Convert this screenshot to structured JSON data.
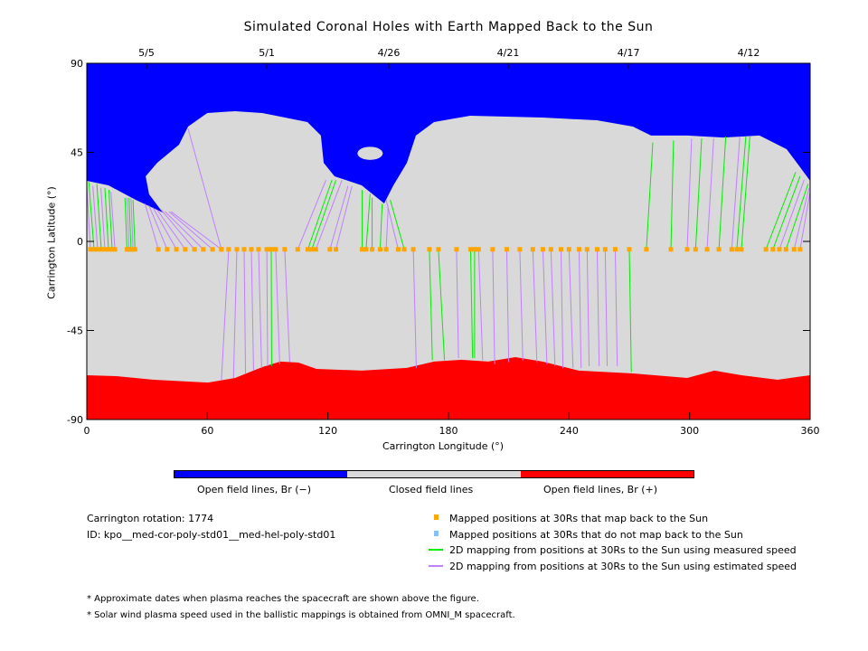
{
  "chart_data": {
    "type": "map-plot",
    "title": "Simulated Coronal Holes with Earth Mapped Back to the Sun",
    "xlabel": "Carrington Longitude (°)",
    "ylabel": "Carrington Latitude (°)",
    "xlim": [
      0,
      360
    ],
    "ylim": [
      -90,
      90
    ],
    "xticks": [
      "0",
      "60",
      "120",
      "180",
      "240",
      "300",
      "360"
    ],
    "xtick_values": [
      0,
      60,
      120,
      180,
      240,
      300,
      360
    ],
    "yticks": [
      "90",
      "45",
      "0",
      "-45",
      "-90"
    ],
    "ytick_values": [
      90,
      45,
      0,
      -45,
      -90
    ],
    "date_axis": [
      {
        "label": "5/5",
        "lon": 29.7
      },
      {
        "label": "5/1",
        "lon": 89.6
      },
      {
        "label": "4/26",
        "lon": 150.3
      },
      {
        "label": "4/21",
        "lon": 209.7
      },
      {
        "label": "4/17",
        "lon": 269.6
      },
      {
        "label": "4/12",
        "lon": 329.4
      }
    ],
    "colors": {
      "open_neg": "#0000ff",
      "closed": "#d9d9d9",
      "open_pos": "#ff0000",
      "dot": "#ffa500",
      "dot_nomap": "#88c0ff",
      "measured": "#00ee00",
      "estimated": "#c080ff"
    },
    "north_hole_boundary": [
      [
        0,
        30.6
      ],
      [
        10.8,
        28.3
      ],
      [
        24.3,
        21
      ],
      [
        37.8,
        14.6
      ],
      [
        31,
        23.8
      ],
      [
        29.3,
        32.9
      ],
      [
        35,
        39.7
      ],
      [
        45.9,
        48.9
      ],
      [
        50.4,
        58
      ],
      [
        60,
        64.9
      ],
      [
        73.8,
        65.8
      ],
      [
        87.3,
        64.9
      ],
      [
        109.8,
        60.3
      ],
      [
        116.5,
        53.5
      ],
      [
        117.9,
        39.7
      ],
      [
        123.3,
        32.9
      ],
      [
        136.8,
        28.3
      ],
      [
        148,
        19.2
      ],
      [
        152.6,
        28.3
      ],
      [
        159.3,
        39.7
      ],
      [
        163.8,
        53.5
      ],
      [
        172.8,
        60.3
      ],
      [
        190.8,
        63.5
      ],
      [
        226.8,
        62.6
      ],
      [
        253.8,
        61.2
      ],
      [
        271.8,
        58
      ],
      [
        280.8,
        53.5
      ],
      [
        298.8,
        53.5
      ],
      [
        316.8,
        52.5
      ],
      [
        334.8,
        53.5
      ],
      [
        348.3,
        46.6
      ],
      [
        355,
        37.5
      ],
      [
        360,
        30.6
      ]
    ],
    "island": {
      "lon": 141,
      "lat": 44.5,
      "dlon": 6.3,
      "dlat": 3.3
    },
    "south_hole_boundary": [
      [
        0,
        -67.6
      ],
      [
        15.3,
        -68.1
      ],
      [
        33.3,
        -69.9
      ],
      [
        60.3,
        -71.3
      ],
      [
        73.8,
        -69
      ],
      [
        87.3,
        -63.5
      ],
      [
        96.3,
        -60.7
      ],
      [
        105.3,
        -61.2
      ],
      [
        114.3,
        -64.4
      ],
      [
        136.8,
        -65.3
      ],
      [
        159.3,
        -63.9
      ],
      [
        172.8,
        -60.7
      ],
      [
        186.3,
        -59.8
      ],
      [
        199.8,
        -60.7
      ],
      [
        213.3,
        -58.5
      ],
      [
        226.8,
        -60.7
      ],
      [
        244.8,
        -65.3
      ],
      [
        271.8,
        -66.7
      ],
      [
        298.8,
        -69
      ],
      [
        312.3,
        -65.3
      ],
      [
        325.8,
        -67.6
      ],
      [
        343.8,
        -69.9
      ],
      [
        360,
        -67.6
      ]
    ],
    "mapped_lat": -4,
    "mappings": [
      [
        1.8,
        0,
        28,
        "e"
      ],
      [
        3.6,
        1,
        30,
        "m"
      ],
      [
        5.4,
        3,
        28,
        "e"
      ],
      [
        7.2,
        5,
        29,
        "m"
      ],
      [
        9,
        7,
        27,
        "e"
      ],
      [
        10.8,
        9,
        27,
        "m"
      ],
      [
        12.6,
        11,
        26,
        "m"
      ],
      [
        14,
        12,
        25,
        "e"
      ],
      [
        20,
        19,
        22,
        "m"
      ],
      [
        21,
        20,
        22,
        "e"
      ],
      [
        22,
        21,
        22,
        "m"
      ],
      [
        23,
        22,
        22,
        "e"
      ],
      [
        24,
        23,
        21,
        "m"
      ],
      [
        35.6,
        29,
        19,
        "e"
      ],
      [
        40,
        31,
        18,
        "e"
      ],
      [
        44.6,
        33,
        17,
        "e"
      ],
      [
        49,
        35,
        16,
        "e"
      ],
      [
        53.6,
        37,
        16,
        "e"
      ],
      [
        58,
        39,
        15,
        "e"
      ],
      [
        62.6,
        41,
        15,
        "e"
      ],
      [
        67,
        42,
        15,
        "e"
      ],
      [
        67,
        50.4,
        57,
        "e"
      ],
      [
        70.6,
        67,
        -70,
        "e"
      ],
      [
        74.7,
        73,
        -69,
        "e"
      ],
      [
        78.3,
        79,
        -67,
        "e"
      ],
      [
        81.9,
        83,
        -65,
        "e"
      ],
      [
        85.5,
        87,
        -64,
        "e"
      ],
      [
        89.6,
        90,
        -63,
        "e"
      ],
      [
        91.8,
        92,
        -63,
        "m"
      ],
      [
        94,
        96,
        -62,
        "e"
      ],
      [
        98.5,
        101,
        -61,
        "e"
      ],
      [
        105,
        119,
        31,
        "e"
      ],
      [
        110,
        122,
        31,
        "m"
      ],
      [
        112,
        124,
        31,
        "m"
      ],
      [
        114,
        127,
        31,
        "e"
      ],
      [
        121,
        130,
        28,
        "e"
      ],
      [
        124,
        132,
        28,
        "e"
      ],
      [
        137,
        137,
        26,
        "m"
      ],
      [
        139,
        141,
        24,
        "m"
      ],
      [
        142,
        142,
        22,
        "m"
      ],
      [
        146,
        147,
        19,
        "m"
      ],
      [
        149,
        150,
        17,
        "e"
      ],
      [
        155,
        149,
        21,
        "e"
      ],
      [
        158,
        151,
        21,
        "m"
      ],
      [
        162.5,
        164,
        -64,
        "e"
      ],
      [
        170.5,
        172,
        -60,
        "m"
      ],
      [
        175,
        178,
        -60,
        "m"
      ],
      [
        184,
        185,
        -59,
        "e"
      ],
      [
        191,
        192,
        -59,
        "m"
      ],
      [
        193,
        193,
        -59,
        "m"
      ],
      [
        195,
        197,
        -60,
        "e"
      ],
      [
        202,
        203,
        -62,
        "e"
      ],
      [
        209,
        210,
        -61,
        "e"
      ],
      [
        215.5,
        217,
        -60,
        "e"
      ],
      [
        222,
        224,
        -61,
        "e"
      ],
      [
        227,
        229,
        -62,
        "e"
      ],
      [
        231,
        233,
        -63,
        "e"
      ],
      [
        236,
        237,
        -64,
        "e"
      ],
      [
        240,
        242,
        -64,
        "e"
      ],
      [
        245,
        246,
        -64,
        "e"
      ],
      [
        249,
        250,
        -63,
        "e"
      ],
      [
        254,
        255,
        -63,
        "e"
      ],
      [
        258,
        259,
        -63,
        "e"
      ],
      [
        263,
        264,
        -63,
        "e"
      ],
      [
        270,
        271,
        -66,
        "m"
      ],
      [
        278.5,
        281.7,
        50,
        "m"
      ],
      [
        290.7,
        292,
        51,
        "m"
      ],
      [
        298.8,
        301,
        52,
        "e"
      ],
      [
        303,
        306,
        52,
        "m"
      ],
      [
        308.7,
        312,
        52,
        "e"
      ],
      [
        314.6,
        318,
        53,
        "m"
      ],
      [
        321,
        325,
        53,
        "e"
      ],
      [
        323.5,
        328,
        53,
        "m"
      ],
      [
        325.8,
        330,
        53,
        "m"
      ],
      [
        338,
        352.8,
        35,
        "m"
      ],
      [
        341.5,
        355,
        33,
        "m"
      ],
      [
        344.7,
        357,
        31,
        "e"
      ],
      [
        348,
        359,
        29,
        "m"
      ],
      [
        352,
        359.5,
        27,
        "e"
      ],
      [
        355,
        359.8,
        24,
        "e"
      ]
    ]
  },
  "colorbar": {
    "labels": [
      "Open field lines, Br (−)",
      "Closed field lines",
      "Open field lines, Br (+)"
    ]
  },
  "info": {
    "rotation": "Carrington rotation: 1774",
    "id": "ID: kpo__med-cor-poly-std01__med-hel-poly-std01"
  },
  "legend": [
    "Mapped positions at 30Rs that map back to the Sun",
    "Mapped positions at 30Rs that do not map back to the Sun",
    "2D mapping from positions at 30Rs to the Sun using measured speed",
    "2D mapping from positions at 30Rs to the Sun using estimated speed"
  ],
  "notes": [
    "* Approximate dates when plasma reaches the spacecraft are shown above the figure.",
    "* Solar wind plasma speed used in the ballistic mappings is obtained from OMNI_M spacecraft."
  ]
}
